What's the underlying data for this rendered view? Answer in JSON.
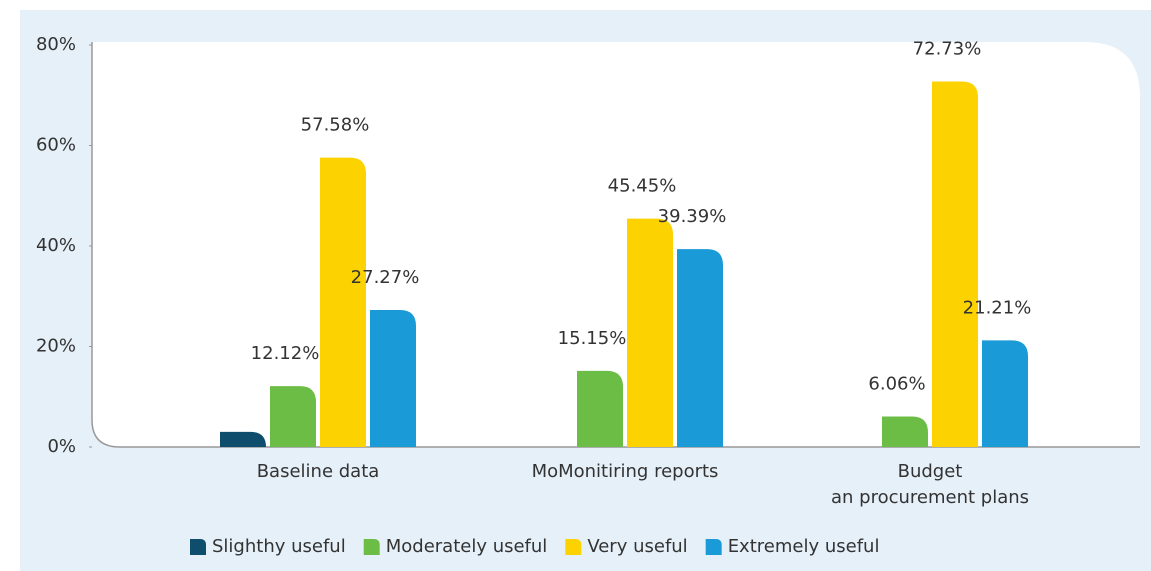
{
  "chart_data": {
    "type": "bar",
    "categories": [
      "Baseline data",
      "MoMonitiring reports",
      "Budget an procurement plans"
    ],
    "series": [
      {
        "name": "Slighthy useful",
        "color": "#0e4d6b",
        "values": [
          3,
          null,
          null
        ],
        "value_labels": [
          null,
          null,
          null
        ]
      },
      {
        "name": "Moderately useful",
        "color": "#6cbd45",
        "values": [
          12.12,
          15.15,
          6.06
        ],
        "value_labels": [
          "12.12%",
          "15.15%",
          "6.06%"
        ]
      },
      {
        "name": "Very useful",
        "color": "#fcd200",
        "values": [
          57.58,
          45.45,
          72.73
        ],
        "value_labels": [
          "57.58%",
          "45.45%",
          "72.73%"
        ]
      },
      {
        "name": "Extremely useful",
        "color": "#1a9ad6",
        "values": [
          27.27,
          39.39,
          21.21
        ],
        "value_labels": [
          "27.27%",
          "39.39%",
          "21.21%"
        ]
      }
    ],
    "ylim": [
      0,
      80
    ],
    "yticks": [
      {
        "value": 0,
        "label": "0%"
      },
      {
        "value": 20,
        "label": "20%"
      },
      {
        "value": 40,
        "label": "40%"
      },
      {
        "value": 60,
        "label": "60%"
      },
      {
        "value": 80,
        "label": "80%"
      }
    ],
    "legend": "bottom"
  }
}
